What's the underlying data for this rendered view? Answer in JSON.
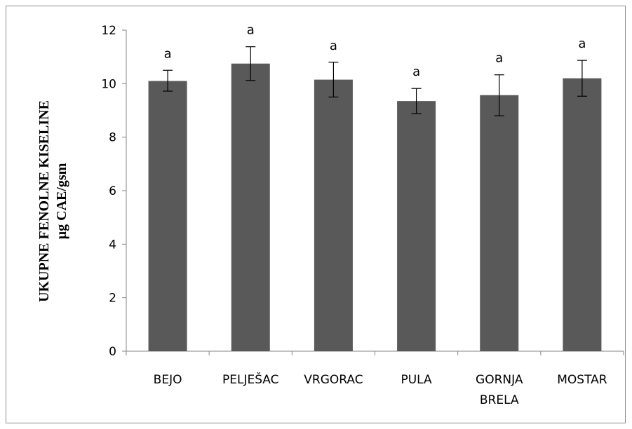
{
  "chart_data": {
    "type": "bar",
    "title": "",
    "xlabel": "",
    "ylabel_lines": [
      "UKUPNE FENOLNE KISELINE",
      "µg CAE/gsm"
    ],
    "categories": [
      [
        "BEJO"
      ],
      [
        "PELJEŠAC"
      ],
      [
        "VRGORAC"
      ],
      [
        "PULA"
      ],
      [
        "GORNJA",
        "BRELA"
      ],
      [
        "MOSTAR"
      ]
    ],
    "values": [
      10.1,
      10.75,
      10.15,
      9.35,
      9.57,
      10.2
    ],
    "error_upper": [
      10.5,
      11.38,
      10.8,
      9.82,
      10.33,
      10.87
    ],
    "error_lower": [
      9.72,
      10.12,
      9.5,
      8.88,
      8.8,
      9.53
    ],
    "significance_labels": [
      "a",
      "a",
      "a",
      "a",
      "a",
      "a"
    ],
    "ylim": [
      0,
      12
    ],
    "yticks": [
      "0",
      "2",
      "4",
      "6",
      "8",
      "10",
      "12"
    ],
    "grid": false,
    "legend": "none",
    "colors": {
      "bar": "#595959",
      "axis": "#868686",
      "error": "#000000"
    }
  }
}
